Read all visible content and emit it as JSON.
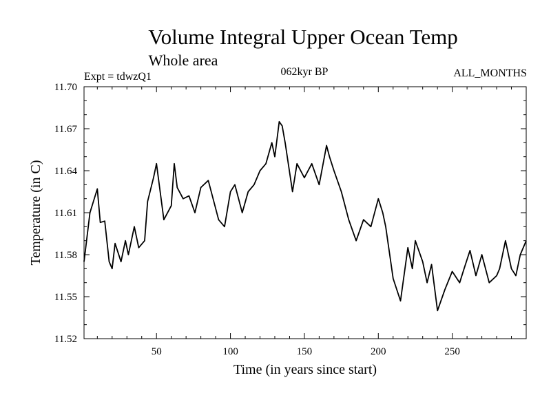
{
  "chart_data": {
    "type": "line",
    "title": "Volume Integral Upper Ocean Temp",
    "subtitle": "Whole area",
    "header_left": "Expt = tdwzQ1",
    "header_center": "062kyr BP",
    "header_right": "ALL_MONTHS",
    "xlabel": "Time (in years since start)",
    "ylabel": "Temperature (in C)",
    "xlim": [
      1,
      300
    ],
    "ylim": [
      11.52,
      11.7
    ],
    "xticks": [
      50,
      100,
      150,
      200,
      250
    ],
    "yticks": [
      11.52,
      11.55,
      11.58,
      11.61,
      11.64,
      11.67,
      11.7
    ],
    "ytick_labels": [
      "11.52",
      "11.55",
      "11.58",
      "11.61",
      "11.64",
      "11.67",
      "11.70"
    ],
    "grid": false,
    "series": [
      {
        "name": "Volume Integral Upper Ocean Temp",
        "x": [
          1,
          5,
          10,
          12,
          15,
          18,
          20,
          22,
          26,
          29,
          31,
          35,
          38,
          42,
          44,
          48,
          50,
          55,
          60,
          62,
          64,
          68,
          72,
          76,
          80,
          85,
          92,
          96,
          100,
          103,
          108,
          112,
          116,
          120,
          124,
          128,
          130,
          133,
          135,
          137,
          142,
          145,
          150,
          155,
          160,
          165,
          167,
          170,
          175,
          180,
          185,
          190,
          195,
          200,
          203,
          205,
          210,
          215,
          220,
          223,
          225,
          230,
          233,
          236,
          240,
          245,
          250,
          255,
          258,
          262,
          266,
          270,
          275,
          280,
          282,
          286,
          290,
          293,
          296,
          300
        ],
        "values": [
          11.575,
          11.61,
          11.627,
          11.603,
          11.604,
          11.575,
          11.57,
          11.588,
          11.575,
          11.59,
          11.58,
          11.6,
          11.585,
          11.59,
          11.618,
          11.635,
          11.645,
          11.605,
          11.615,
          11.645,
          11.628,
          11.62,
          11.622,
          11.61,
          11.628,
          11.633,
          11.605,
          11.6,
          11.625,
          11.63,
          11.61,
          11.625,
          11.63,
          11.64,
          11.645,
          11.66,
          11.65,
          11.675,
          11.672,
          11.66,
          11.625,
          11.645,
          11.635,
          11.645,
          11.63,
          11.658,
          11.65,
          11.64,
          11.625,
          11.605,
          11.59,
          11.605,
          11.6,
          11.62,
          11.61,
          11.6,
          11.563,
          11.547,
          11.585,
          11.57,
          11.59,
          11.575,
          11.56,
          11.573,
          11.54,
          11.555,
          11.568,
          11.56,
          11.57,
          11.583,
          11.565,
          11.58,
          11.56,
          11.565,
          11.57,
          11.59,
          11.57,
          11.565,
          11.58,
          11.59
        ]
      }
    ]
  }
}
